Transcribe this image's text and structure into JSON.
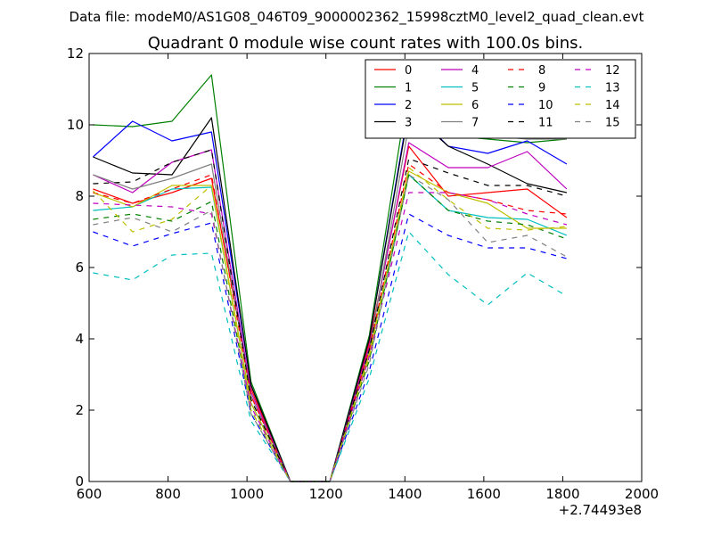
{
  "page": {
    "suptitle": "Data file: modeM0/AS1G08_046T09_9000002362_15998cztM0_level2_quad_clean.evt"
  },
  "chart_data": {
    "type": "line",
    "title": "Quadrant 0 module wise count rates with 100.0s bins.",
    "xlabel": "",
    "ylabel": "",
    "x_offset_label": "+2.74493e8",
    "xlim": [
      600,
      2000
    ],
    "ylim": [
      0,
      12
    ],
    "xticks": [
      "600",
      "800",
      "1000",
      "1200",
      "1400",
      "1600",
      "1800",
      "2000"
    ],
    "yticks": [
      "0",
      "2",
      "4",
      "6",
      "8",
      "10",
      "12"
    ],
    "grid": false,
    "legend_position": "top-right",
    "x": [
      610,
      710,
      810,
      910,
      1010,
      1110,
      1210,
      1310,
      1410,
      1510,
      1610,
      1710,
      1810
    ],
    "series": [
      {
        "name": "0",
        "color": "#ff0000",
        "dash": "solid",
        "values": [
          8.2,
          7.8,
          8.1,
          8.5,
          2.6,
          0,
          0,
          3.9,
          9.4,
          8.0,
          8.1,
          8.2,
          7.4
        ]
      },
      {
        "name": "1",
        "color": "#008000",
        "dash": "solid",
        "values": [
          10.0,
          9.95,
          10.1,
          11.4,
          2.8,
          0,
          0,
          4.1,
          11.1,
          9.7,
          9.6,
          9.5,
          9.6
        ]
      },
      {
        "name": "2",
        "color": "#0000ff",
        "dash": "solid",
        "values": [
          9.1,
          10.1,
          9.55,
          9.8,
          2.7,
          0,
          0,
          4.0,
          10.5,
          9.4,
          9.2,
          9.55,
          8.9
        ]
      },
      {
        "name": "3",
        "color": "#000000",
        "dash": "solid",
        "values": [
          9.1,
          8.65,
          8.6,
          10.2,
          2.7,
          0,
          0,
          4.0,
          10.4,
          9.4,
          8.9,
          8.35,
          8.1
        ]
      },
      {
        "name": "4",
        "color": "#bf00bf",
        "dash": "solid",
        "values": [
          8.6,
          8.1,
          8.95,
          9.3,
          2.5,
          0,
          0,
          3.8,
          9.5,
          8.8,
          8.8,
          9.25,
          8.2
        ]
      },
      {
        "name": "5",
        "color": "#00bfbf",
        "dash": "solid",
        "values": [
          7.6,
          7.7,
          8.2,
          8.25,
          2.2,
          0,
          0,
          3.6,
          8.6,
          7.6,
          7.4,
          7.35,
          6.9
        ]
      },
      {
        "name": "6",
        "color": "#bfbf00",
        "dash": "solid",
        "values": [
          8.1,
          7.7,
          8.3,
          8.3,
          2.2,
          0,
          0,
          3.6,
          8.7,
          8.1,
          7.8,
          7.1,
          7.1
        ]
      },
      {
        "name": "7",
        "color": "#808080",
        "dash": "solid",
        "values": [
          8.6,
          8.2,
          8.5,
          8.9,
          2.4,
          0,
          0,
          3.7,
          10.0,
          10.3,
          9.7,
          9.6,
          9.6
        ]
      },
      {
        "name": "8",
        "color": "#ff0000",
        "dash": "dashed",
        "values": [
          8.1,
          7.8,
          8.2,
          8.6,
          2.4,
          0,
          0,
          3.7,
          8.9,
          8.1,
          7.9,
          7.6,
          7.5
        ]
      },
      {
        "name": "9",
        "color": "#008000",
        "dash": "dashed",
        "values": [
          7.35,
          7.5,
          7.3,
          7.85,
          2.0,
          0,
          0,
          3.4,
          8.6,
          7.6,
          7.3,
          7.2,
          6.8
        ]
      },
      {
        "name": "10",
        "color": "#0000ff",
        "dash": "dashed",
        "values": [
          7.0,
          6.6,
          6.95,
          7.25,
          1.9,
          0,
          0,
          3.1,
          7.5,
          6.9,
          6.55,
          6.55,
          6.25
        ]
      },
      {
        "name": "11",
        "color": "#000000",
        "dash": "dashed",
        "values": [
          8.35,
          8.4,
          8.95,
          9.3,
          2.3,
          0,
          0,
          3.7,
          9.05,
          8.65,
          8.3,
          8.3,
          8.0
        ]
      },
      {
        "name": "12",
        "color": "#bf00bf",
        "dash": "dashed",
        "values": [
          7.8,
          7.75,
          7.7,
          7.5,
          2.1,
          0,
          0,
          3.5,
          8.1,
          8.1,
          7.9,
          7.5,
          7.2
        ]
      },
      {
        "name": "13",
        "color": "#00bfbf",
        "dash": "dashed",
        "values": [
          5.85,
          5.65,
          6.35,
          6.4,
          1.7,
          0,
          0,
          2.9,
          7.0,
          5.8,
          4.95,
          5.85,
          5.2
        ]
      },
      {
        "name": "14",
        "color": "#bfbf00",
        "dash": "dashed",
        "values": [
          8.15,
          7.0,
          7.35,
          8.3,
          2.0,
          0,
          0,
          3.5,
          8.8,
          7.9,
          7.1,
          7.05,
          7.15
        ]
      },
      {
        "name": "15",
        "color": "#808080",
        "dash": "dashed",
        "values": [
          7.2,
          7.4,
          7.0,
          7.6,
          1.9,
          0,
          0,
          3.3,
          8.6,
          7.9,
          6.7,
          6.9,
          6.3
        ]
      }
    ]
  }
}
